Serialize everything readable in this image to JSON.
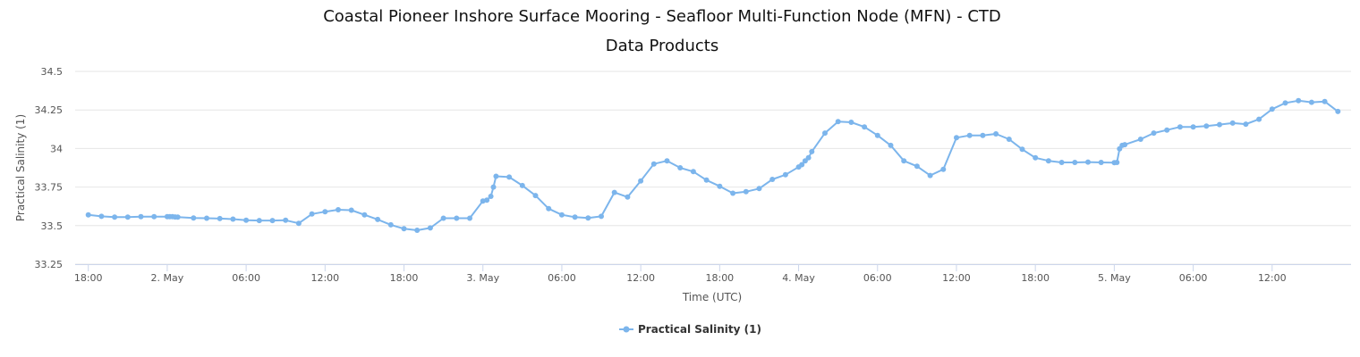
{
  "chart_data": {
    "type": "line",
    "title": "Coastal Pioneer Inshore Surface Mooring - Seafloor Multi-Function Node (MFN) - CTD",
    "subtitle": "Data Products",
    "xlabel": "Time (UTC)",
    "ylabel": "Practical Salinity (1)",
    "ylim": [
      33.25,
      34.5
    ],
    "xlim": [
      "2024-05-01 17:00",
      "2024-05-05 18:00"
    ],
    "x_tick_labels": [
      "18:00",
      "2. May",
      "06:00",
      "12:00",
      "18:00",
      "3. May",
      "06:00",
      "12:00",
      "18:00",
      "4. May",
      "06:00",
      "12:00",
      "18:00",
      "5. May",
      "06:00",
      "12:00"
    ],
    "y_tick_labels": [
      "34.5",
      "34.25",
      "34",
      "33.75",
      "33.5",
      "33.25"
    ],
    "grid": true,
    "legend_position": "bottom-center",
    "colors": {
      "series": "#7cb5ec",
      "grid": "#e6e6e6",
      "axis": "#ccd6eb"
    },
    "series": [
      {
        "name": "Practical Salinity (1)",
        "points": [
          [
            "2024-05-01 18:00",
            33.57
          ],
          [
            "2024-05-01 19:00",
            33.56
          ],
          [
            "2024-05-01 20:00",
            33.555
          ],
          [
            "2024-05-01 21:00",
            33.555
          ],
          [
            "2024-05-01 22:00",
            33.558
          ],
          [
            "2024-05-01 23:00",
            33.558
          ],
          [
            "2024-05-02 00:00",
            33.558
          ],
          [
            "2024-05-02 00:12",
            33.558
          ],
          [
            "2024-05-02 00:24",
            33.558
          ],
          [
            "2024-05-02 00:36",
            33.556
          ],
          [
            "2024-05-02 00:48",
            33.555
          ],
          [
            "2024-05-02 02:00",
            33.55
          ],
          [
            "2024-05-02 03:00",
            33.548
          ],
          [
            "2024-05-02 04:00",
            33.546
          ],
          [
            "2024-05-02 05:00",
            33.542
          ],
          [
            "2024-05-02 06:00",
            33.535
          ],
          [
            "2024-05-02 07:00",
            33.533
          ],
          [
            "2024-05-02 08:00",
            33.533
          ],
          [
            "2024-05-02 09:00",
            33.535
          ],
          [
            "2024-05-02 10:00",
            33.515
          ],
          [
            "2024-05-02 11:00",
            33.575
          ],
          [
            "2024-05-02 12:00",
            33.59
          ],
          [
            "2024-05-02 13:00",
            33.603
          ],
          [
            "2024-05-02 14:00",
            33.6
          ],
          [
            "2024-05-02 15:00",
            33.57
          ],
          [
            "2024-05-02 16:00",
            33.54
          ],
          [
            "2024-05-02 17:00",
            33.505
          ],
          [
            "2024-05-02 18:00",
            33.48
          ],
          [
            "2024-05-02 19:00",
            33.47
          ],
          [
            "2024-05-02 20:00",
            33.485
          ],
          [
            "2024-05-02 21:00",
            33.548
          ],
          [
            "2024-05-02 22:00",
            33.548
          ],
          [
            "2024-05-02 23:00",
            33.548
          ],
          [
            "2024-05-03 00:00",
            33.66
          ],
          [
            "2024-05-03 00:18",
            33.665
          ],
          [
            "2024-05-03 00:36",
            33.69
          ],
          [
            "2024-05-03 00:48",
            33.75
          ],
          [
            "2024-05-03 01:00",
            33.82
          ],
          [
            "2024-05-03 02:00",
            33.815
          ],
          [
            "2024-05-03 03:00",
            33.76
          ],
          [
            "2024-05-03 04:00",
            33.695
          ],
          [
            "2024-05-03 05:00",
            33.61
          ],
          [
            "2024-05-03 06:00",
            33.57
          ],
          [
            "2024-05-03 07:00",
            33.555
          ],
          [
            "2024-05-03 08:00",
            33.55
          ],
          [
            "2024-05-03 09:00",
            33.56
          ],
          [
            "2024-05-03 10:00",
            33.715
          ],
          [
            "2024-05-03 11:00",
            33.685
          ],
          [
            "2024-05-03 12:00",
            33.79
          ],
          [
            "2024-05-03 13:00",
            33.9
          ],
          [
            "2024-05-03 14:00",
            33.92
          ],
          [
            "2024-05-03 15:00",
            33.875
          ],
          [
            "2024-05-03 16:00",
            33.85
          ],
          [
            "2024-05-03 17:00",
            33.795
          ],
          [
            "2024-05-03 18:00",
            33.755
          ],
          [
            "2024-05-03 19:00",
            33.71
          ],
          [
            "2024-05-03 20:00",
            33.72
          ],
          [
            "2024-05-03 21:00",
            33.74
          ],
          [
            "2024-05-03 22:00",
            33.8
          ],
          [
            "2024-05-03 23:00",
            33.83
          ],
          [
            "2024-05-04 00:00",
            33.88
          ],
          [
            "2024-05-04 00:15",
            33.895
          ],
          [
            "2024-05-04 00:30",
            33.92
          ],
          [
            "2024-05-04 00:45",
            33.94
          ],
          [
            "2024-05-04 01:00",
            33.98
          ],
          [
            "2024-05-04 02:00",
            34.1
          ],
          [
            "2024-05-04 03:00",
            34.175
          ],
          [
            "2024-05-04 04:00",
            34.17
          ],
          [
            "2024-05-04 05:00",
            34.14
          ],
          [
            "2024-05-04 06:00",
            34.085
          ],
          [
            "2024-05-04 07:00",
            34.02
          ],
          [
            "2024-05-04 08:00",
            33.92
          ],
          [
            "2024-05-04 09:00",
            33.885
          ],
          [
            "2024-05-04 10:00",
            33.825
          ],
          [
            "2024-05-04 11:00",
            33.865
          ],
          [
            "2024-05-04 12:00",
            34.07
          ],
          [
            "2024-05-04 13:00",
            34.085
          ],
          [
            "2024-05-04 14:00",
            34.085
          ],
          [
            "2024-05-04 15:00",
            34.095
          ],
          [
            "2024-05-04 16:00",
            34.06
          ],
          [
            "2024-05-04 17:00",
            33.995
          ],
          [
            "2024-05-04 18:00",
            33.94
          ],
          [
            "2024-05-04 19:00",
            33.92
          ],
          [
            "2024-05-04 20:00",
            33.91
          ],
          [
            "2024-05-04 21:00",
            33.91
          ],
          [
            "2024-05-04 22:00",
            33.912
          ],
          [
            "2024-05-04 23:00",
            33.91
          ],
          [
            "2024-05-05 00:00",
            33.908
          ],
          [
            "2024-05-05 00:12",
            33.91
          ],
          [
            "2024-05-05 00:24",
            33.998
          ],
          [
            "2024-05-05 00:36",
            34.02
          ],
          [
            "2024-05-05 00:48",
            34.025
          ],
          [
            "2024-05-05 02:00",
            34.06
          ],
          [
            "2024-05-05 03:00",
            34.1
          ],
          [
            "2024-05-05 04:00",
            34.12
          ],
          [
            "2024-05-05 05:00",
            34.14
          ],
          [
            "2024-05-05 06:00",
            34.14
          ],
          [
            "2024-05-05 07:00",
            34.145
          ],
          [
            "2024-05-05 08:00",
            34.155
          ],
          [
            "2024-05-05 09:00",
            34.165
          ],
          [
            "2024-05-05 10:00",
            34.158
          ],
          [
            "2024-05-05 11:00",
            34.19
          ],
          [
            "2024-05-05 12:00",
            34.255
          ],
          [
            "2024-05-05 13:00",
            34.295
          ],
          [
            "2024-05-05 14:00",
            34.31
          ],
          [
            "2024-05-05 15:00",
            34.3
          ],
          [
            "2024-05-05 16:00",
            34.305
          ],
          [
            "2024-05-05 17:00",
            34.24
          ]
        ]
      }
    ]
  }
}
